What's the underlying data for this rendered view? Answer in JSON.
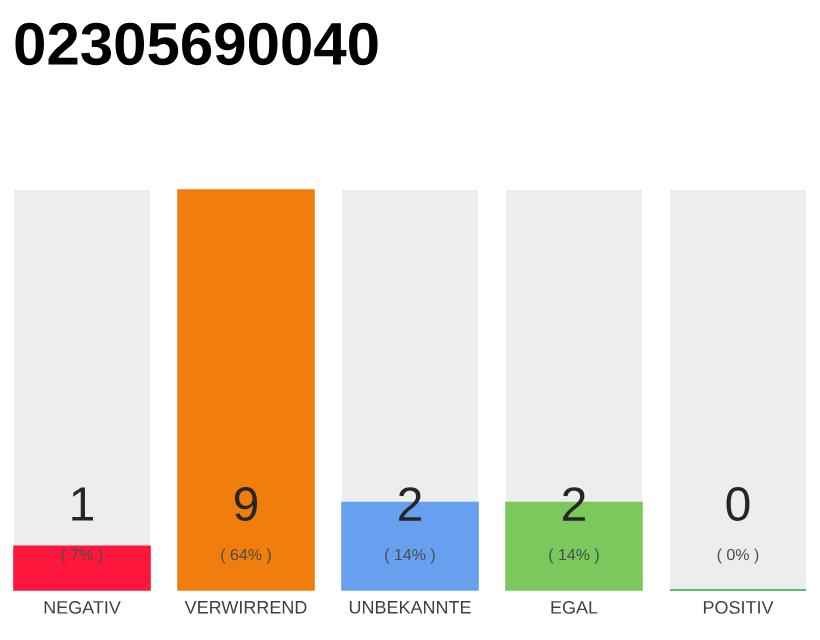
{
  "chart_data": {
    "type": "bar",
    "title": "02305690040",
    "categories": [
      "NEGATIV",
      "VERWIRREND",
      "UNBEKANNTE",
      "EGAL",
      "POSITIV"
    ],
    "values": [
      7,
      64,
      14,
      14,
      0
    ],
    "colors": [
      "#fe163c",
      "#f07d0c",
      "#66a0ef",
      "#7bc85c",
      "#22aa44"
    ],
    "value_labels": [
      "( 7% )",
      "( 64% )",
      "( 14% )",
      "( 14% )",
      "( 0% )"
    ],
    "annotations": [
      "1",
      "9",
      "2",
      "2",
      "0"
    ],
    "grid": "x"
  }
}
